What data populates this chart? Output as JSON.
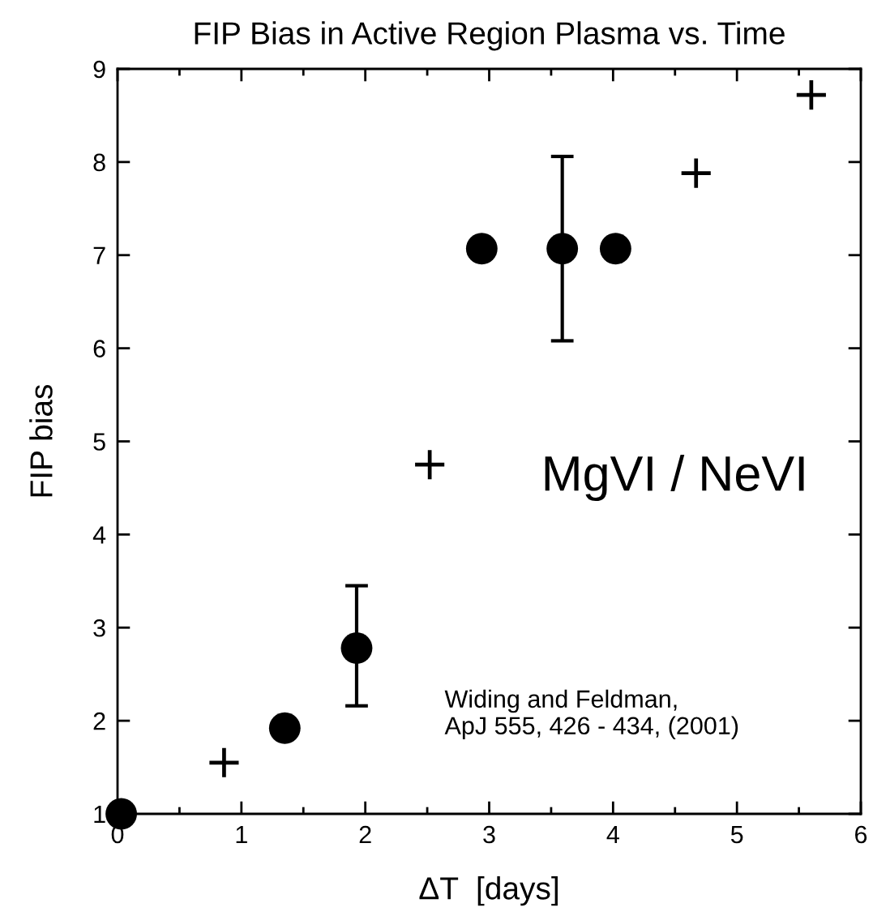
{
  "chart_data": {
    "type": "scatter",
    "title": "FIP Bias in Active Region Plasma vs. Time",
    "xlabel": "ΔT  [days]",
    "ylabel": "FIP bias",
    "series": [
      {
        "color": "#000000",
        "marker": "circle",
        "x": [
          0.03,
          1.35,
          1.93,
          2.94,
          3.59,
          4.02
        ],
        "values": [
          1.0,
          1.92,
          2.78,
          7.07,
          7.07,
          7.07
        ],
        "errors": [
          null,
          null,
          [
            2.16,
            3.45
          ],
          null,
          [
            6.08,
            8.06
          ],
          null
        ]
      },
      {
        "color": "#000000",
        "marker": "cross",
        "x": [
          0.86,
          2.52,
          4.67,
          5.6
        ],
        "values": [
          1.55,
          4.75,
          7.88,
          8.72
        ]
      }
    ],
    "annotations": [
      "MgVI / NeVI",
      "Widing and Feldman,\nApJ 555, 426 - 434, (2001)"
    ],
    "xlim": [
      0,
      6
    ],
    "ylim": [
      1,
      9
    ],
    "xticks": [
      0,
      {
        "value": 0.5,
        "label": null
      },
      1,
      {
        "value": 1.5,
        "label": null
      },
      2,
      {
        "value": 2.5,
        "label": null
      },
      3,
      {
        "value": 3.5,
        "label": null
      },
      4,
      {
        "value": 4.5,
        "label": null
      },
      5,
      {
        "value": 5.5,
        "label": null
      },
      6
    ],
    "yticks": [
      1,
      2,
      3,
      4,
      5,
      6,
      7,
      8,
      9
    ],
    "grid": false
  }
}
